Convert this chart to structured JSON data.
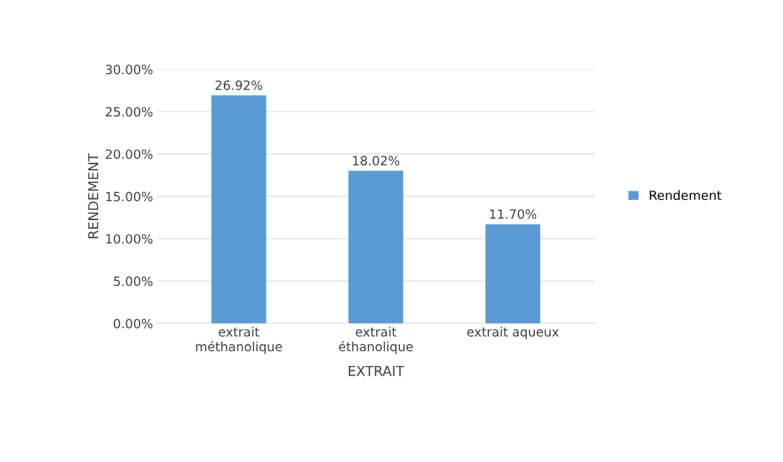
{
  "chart_data": {
    "type": "bar",
    "xlabel": "EXTRAIT",
    "ylabel": "RENDEMENT",
    "categories": [
      "extrait\nméthanolique",
      "extrait\néthanolique",
      "extrait aqueux"
    ],
    "series": [
      {
        "name": "Rendement",
        "color": "#5b9bd5",
        "values": [
          26.92,
          18.02,
          11.7
        ],
        "value_labels": [
          "26.92%",
          "18.02%",
          "11.70%"
        ]
      }
    ],
    "ylim": [
      0,
      30
    ],
    "yticks": [
      {
        "value": 0,
        "label": "0.00%"
      },
      {
        "value": 5,
        "label": "5.00%"
      },
      {
        "value": 10,
        "label": "10.00%"
      },
      {
        "value": 15,
        "label": "15.00%"
      },
      {
        "value": 20,
        "label": "20.00%"
      },
      {
        "value": 25,
        "label": "25.00%"
      },
      {
        "value": 30,
        "label": "30.00%"
      }
    ],
    "grid": "y",
    "legend": "right"
  }
}
